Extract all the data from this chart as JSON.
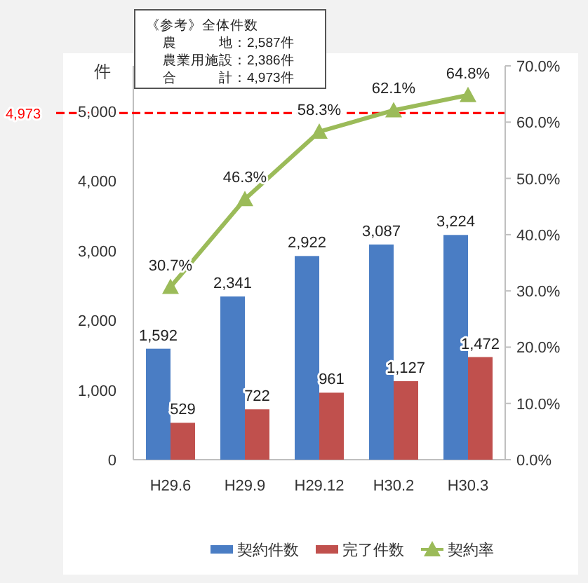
{
  "chart_data": {
    "type": "bar",
    "categories": [
      "H29.6",
      "H29.9",
      "H29.12",
      "H30.2",
      "H30.3"
    ],
    "ylabel": "件",
    "series": [
      {
        "name": "契約件数",
        "color": "#4a7dc4",
        "values": [
          1592,
          2341,
          2922,
          3087,
          3224
        ],
        "value_labels": [
          "1,592",
          "2,341",
          "2,922",
          "3,087",
          "3,224"
        ]
      },
      {
        "name": "完了件数",
        "color": "#c0504d",
        "values": [
          529,
          722,
          961,
          1127,
          1472
        ],
        "value_labels": [
          "529",
          "722",
          "961",
          "1,127",
          "1,472"
        ]
      },
      {
        "name": "契約率",
        "type": "line",
        "axis": "y2",
        "color": "#9bbb59",
        "marker": "triangle",
        "values": [
          30.7,
          46.3,
          58.3,
          62.1,
          64.8
        ],
        "value_labels": [
          "30.7%",
          "46.3%",
          "58.3%",
          "62.1%",
          "64.8%"
        ]
      }
    ],
    "ylim": [
      0,
      5650
    ],
    "yticks": [
      0,
      {
        "value": 1000,
        "label": "1,000"
      },
      {
        "value": 2000,
        "label": "2,000"
      },
      {
        "value": 3000,
        "label": "3,000"
      },
      {
        "value": 4000,
        "label": "4,000"
      },
      {
        "value": 5000,
        "label": "5,000"
      }
    ],
    "y2lim": [
      0,
      70
    ],
    "y2ticks": [
      {
        "value": 0,
        "label": "0.0%"
      },
      {
        "value": 10,
        "label": "10.0%"
      },
      {
        "value": 20,
        "label": "20.0%"
      },
      {
        "value": 30,
        "label": "30.0%"
      },
      {
        "value": 40,
        "label": "40.0%"
      },
      {
        "value": 50,
        "label": "50.0%"
      },
      {
        "value": 60,
        "label": "60.0%"
      },
      {
        "value": 70,
        "label": "70.0%"
      }
    ],
    "ref_lines": [
      {
        "axis": "y",
        "value": 4973,
        "label": "4,973",
        "color": "#ff0000",
        "line_style": "dashed"
      }
    ],
    "annotations": [
      "《参考》全体件数",
      "農　　　地：2,587件",
      "農業用施設：2,386件",
      "合　　　計：4,973件"
    ],
    "legend": "bottom",
    "grid": false
  }
}
